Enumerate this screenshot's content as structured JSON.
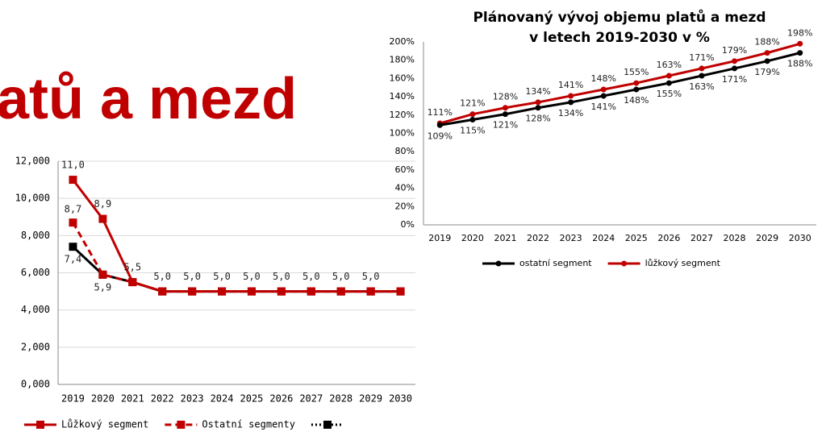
{
  "slide_title": "atů a mezd",
  "chart_data": [
    {
      "type": "line",
      "categories": [
        "2019",
        "2020",
        "2021",
        "2022",
        "2023",
        "2024",
        "2025",
        "2026",
        "2027",
        "2028",
        "2029",
        "2030"
      ],
      "ylim": [
        0,
        12
      ],
      "yticks": [
        {
          "value": 0,
          "label": "0,000"
        },
        {
          "value": 2,
          "label": "2,000"
        },
        {
          "value": 4,
          "label": "4,000"
        },
        {
          "value": 6,
          "label": "6,000"
        },
        {
          "value": 8,
          "label": "8,000"
        },
        {
          "value": 10,
          "label": "10,000"
        },
        {
          "value": 12,
          "label": "12,000"
        }
      ],
      "grid": true,
      "marker": "square",
      "series": [
        {
          "name": "Lůžkový segment",
          "color": "#c00000",
          "line_style": "solid",
          "values": [
            11.0,
            8.9,
            5.5,
            5.0,
            5.0,
            5.0,
            5.0,
            5.0,
            5.0,
            5.0,
            5.0,
            5.0
          ],
          "value_labels": [
            "11,0",
            "8,9",
            "5,5",
            "5,0",
            "5,0",
            "5,0",
            "5,0",
            "5,0",
            "5,0",
            "5,0",
            "5,0",
            null
          ]
        },
        {
          "name": "Ostatní segmenty",
          "color": "#c00000",
          "line_style": "dashed",
          "values": [
            8.7,
            5.9,
            5.5,
            5.0,
            5.0,
            5.0,
            5.0,
            5.0,
            5.0,
            5.0,
            5.0,
            5.0
          ],
          "value_labels": [
            "8,7",
            null,
            null,
            null,
            null,
            null,
            null,
            null,
            null,
            null,
            null,
            null
          ]
        },
        {
          "color": "#000000",
          "line_style": "dotted",
          "values": [
            7.4,
            5.9,
            5.5,
            5.0,
            5.0,
            5.0,
            5.0,
            5.0,
            5.0,
            5.0,
            5.0,
            5.0
          ],
          "value_labels": [
            "7,4",
            "5,9",
            null,
            null,
            null,
            null,
            null,
            null,
            null,
            null,
            null,
            null
          ]
        }
      ]
    },
    {
      "type": "line",
      "title": [
        "Plánovaný vývoj objemu platů a mezd",
        "v letech 2019-2030 v %"
      ],
      "categories": [
        "2019",
        "2020",
        "2021",
        "2022",
        "2023",
        "2024",
        "2025",
        "2026",
        "2027",
        "2028",
        "2029",
        "2030"
      ],
      "ylim": [
        0,
        200
      ],
      "yticks": [
        {
          "value": 0,
          "label": "0%"
        },
        {
          "value": 20,
          "label": "20%"
        },
        {
          "value": 40,
          "label": "40%"
        },
        {
          "value": 60,
          "label": "60%"
        },
        {
          "value": 80,
          "label": "80%"
        },
        {
          "value": 100,
          "label": "100%"
        },
        {
          "value": 120,
          "label": "120%"
        },
        {
          "value": 140,
          "label": "140%"
        },
        {
          "value": 160,
          "label": "160%"
        },
        {
          "value": 180,
          "label": "180%"
        },
        {
          "value": 200,
          "label": "200%"
        }
      ],
      "grid": false,
      "marker": "circle",
      "series": [
        {
          "name": "ostatní segment",
          "color": "#000000",
          "line_style": "solid",
          "values": [
            109,
            115,
            121,
            128,
            134,
            141,
            148,
            155,
            163,
            171,
            179,
            188
          ],
          "value_labels": [
            "109%",
            "115%",
            "121%",
            "128%",
            "134%",
            "141%",
            "148%",
            "155%",
            "163%",
            "171%",
            "179%",
            "188%"
          ]
        },
        {
          "name": "lůžkový segment",
          "color": "#c00000",
          "line_style": "solid",
          "values": [
            111,
            121,
            128,
            134,
            141,
            148,
            155,
            163,
            171,
            179,
            188,
            198
          ],
          "value_labels": [
            "111%",
            "121%",
            "128%",
            "134%",
            "141%",
            "148%",
            "155%",
            "163%",
            "171%",
            "179%",
            "188%",
            "198%"
          ]
        }
      ]
    }
  ]
}
